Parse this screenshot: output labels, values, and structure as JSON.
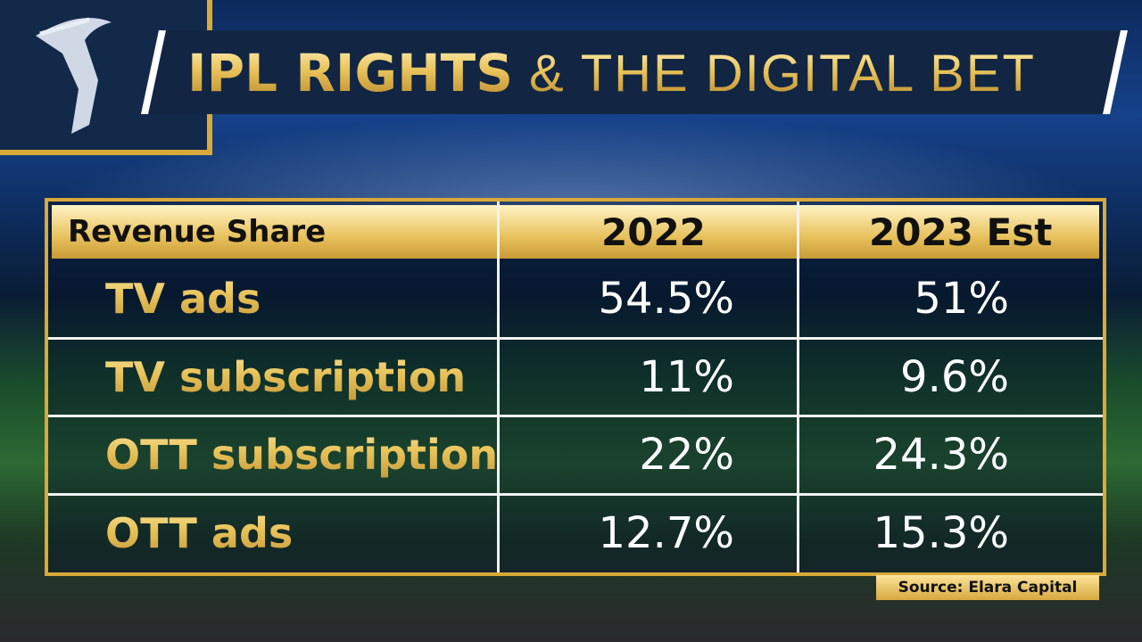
{
  "header": {
    "title_bold": "IPL RIGHTS",
    "title_light": "& THE DIGITAL BET"
  },
  "table": {
    "columns": [
      "Revenue Share",
      "2022",
      "2023 Est"
    ],
    "rows": [
      [
        "TV ads",
        "54.5%",
        "51%"
      ],
      [
        "TV subscription",
        "11%",
        "9.6%"
      ],
      [
        "OTT subscription",
        "22%",
        "24.3%"
      ],
      [
        "OTT ads",
        "12.7%",
        "15.3%"
      ]
    ]
  },
  "source": "Source: Elara Capital"
}
